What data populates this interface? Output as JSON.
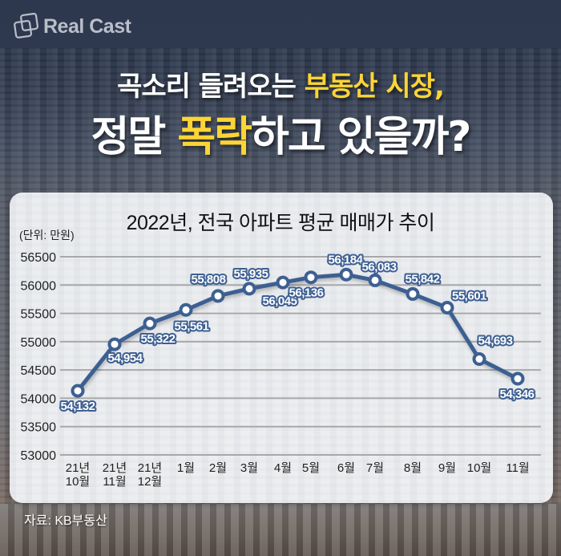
{
  "brand": {
    "logo_text": "Real Cast",
    "icon": "overlapping-squares-icon"
  },
  "headline": {
    "line1_normal": "곡소리 들려오는 ",
    "line1_highlight": "부동산 시장,",
    "line2_normal_a": "정말 ",
    "line2_highlight": "폭락",
    "line2_normal_b": "하고 있을까?",
    "highlight_color": "#fcd535"
  },
  "source": "자료: KB부동산",
  "colors": {
    "line": "#3d5f92",
    "marker_fill": "#ffffff",
    "grid": "#a8a8a8",
    "label_text": "#ffffff",
    "label_stroke": "#3d5f92"
  },
  "chart_data": {
    "type": "line",
    "title": "2022년, 전국 아파트 평균 매매가 추이",
    "unit_label": "(단위: 만원)",
    "xlabel": "",
    "ylabel": "",
    "ylim": [
      53000,
      56500
    ],
    "yticks": [
      56500,
      56000,
      55500,
      55000,
      54500,
      54000,
      53500,
      53000
    ],
    "grid": true,
    "legend": null,
    "categories": [
      [
        "21년",
        "10월"
      ],
      [
        "21년",
        "11월"
      ],
      [
        "21년",
        "12월"
      ],
      [
        "1월"
      ],
      [
        "2월"
      ],
      [
        "3월"
      ],
      [
        "4월"
      ],
      [
        "5월"
      ],
      [
        "6월"
      ],
      [
        "7월"
      ],
      [
        "8월"
      ],
      [
        "9월"
      ],
      [
        "10월"
      ],
      [
        "11월"
      ]
    ],
    "series": [
      {
        "name": "전국 아파트 평균 매매가",
        "values": [
          54132,
          54954,
          55322,
          55561,
          55808,
          55935,
          56045,
          56136,
          56184,
          56083,
          55842,
          55601,
          54693,
          54346
        ],
        "labels": [
          "54,132",
          "54,954",
          "55,322",
          "55,561",
          "55,808",
          "55,935",
          "56,045",
          "56,136",
          "56,184",
          "56,083",
          "55,842",
          "55,601",
          "54,693",
          "54,346"
        ],
        "label_position": [
          "below",
          "below",
          "below",
          "below",
          "above",
          "above",
          "below",
          "below",
          "above",
          "above",
          "above",
          "right",
          "above",
          "below"
        ]
      }
    ]
  }
}
